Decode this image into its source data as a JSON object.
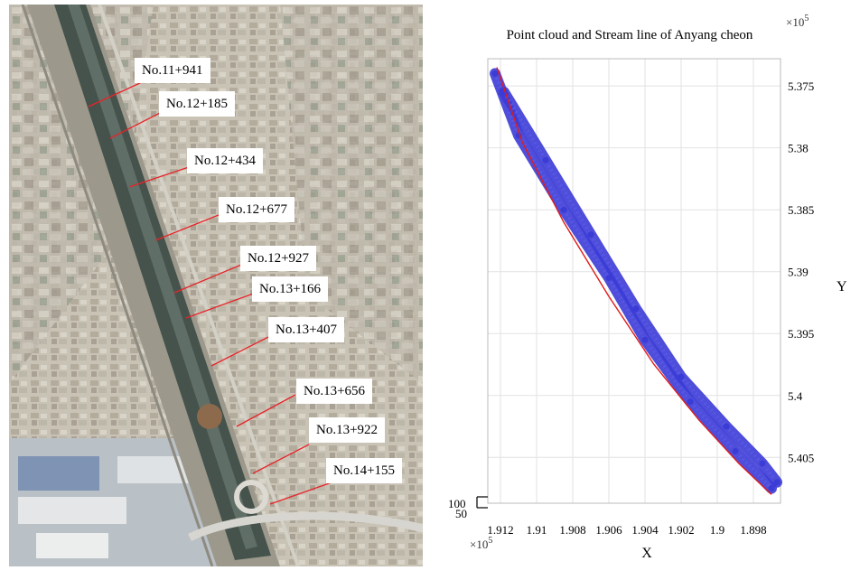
{
  "photo": {
    "sections": [
      {
        "label": "No.11+941"
      },
      {
        "label": "No.12+185"
      },
      {
        "label": "No.12+434"
      },
      {
        "label": "No.12+677"
      },
      {
        "label": "No.12+927"
      },
      {
        "label": "No.13+166"
      },
      {
        "label": "No.13+407"
      },
      {
        "label": "No.13+656"
      },
      {
        "label": "No.13+922"
      },
      {
        "label": "No.14+155"
      }
    ],
    "section_line_color": "#e8242a"
  },
  "chart_data": {
    "type": "scatter",
    "title": "Point cloud and Stream line of Anyang cheon",
    "xlabel": "X",
    "ylabel": "Y",
    "x_exponent_label": "×10",
    "x_exponent_power": "5",
    "y_exponent_label": "×10",
    "y_exponent_power": "5",
    "z_tick_labels": [
      "100",
      "50"
    ],
    "xlim": [
      1.8965,
      1.9127
    ],
    "ylim": [
      5.3728,
      5.4087
    ],
    "x_reversed": true,
    "y_reversed": true,
    "x_ticks": [
      1.912,
      1.91,
      1.908,
      1.906,
      1.904,
      1.902,
      1.9,
      1.898
    ],
    "x_tick_labels": [
      "1.912",
      "1.91",
      "1.908",
      "1.906",
      "1.904",
      "1.902",
      "1.9",
      "1.898"
    ],
    "y_ticks": [
      5.375,
      5.38,
      5.385,
      5.39,
      5.395,
      5.4,
      5.405
    ],
    "y_tick_labels": [
      "5.375",
      "5.38",
      "5.385",
      "5.39",
      "5.395",
      "5.4",
      "5.405"
    ],
    "grid": true,
    "point_color": "#3b3bd6",
    "stream_color": "#e01b1b",
    "series": [
      {
        "kind": "band",
        "x": [
          1.9123,
          1.911,
          1.9085,
          1.906,
          1.904,
          1.9015,
          1.899,
          1.897
        ],
        "y": [
          5.374,
          5.379,
          5.385,
          5.3905,
          5.3955,
          5.4005,
          5.4045,
          5.4075
        ]
      },
      {
        "kind": "band",
        "x": [
          1.9118,
          1.9095,
          1.907,
          1.9045,
          1.902,
          1.8995,
          1.8975,
          1.8967
        ],
        "y": [
          5.3755,
          5.381,
          5.387,
          5.393,
          5.3985,
          5.4025,
          5.4055,
          5.407
        ]
      },
      {
        "kind": "stream",
        "x": [
          1.9122,
          1.9108,
          1.9085,
          1.906,
          1.9035,
          1.901,
          1.8988,
          1.897
        ],
        "y": [
          5.3735,
          5.3795,
          5.386,
          5.392,
          5.3975,
          5.402,
          5.4055,
          5.408
        ]
      }
    ]
  }
}
